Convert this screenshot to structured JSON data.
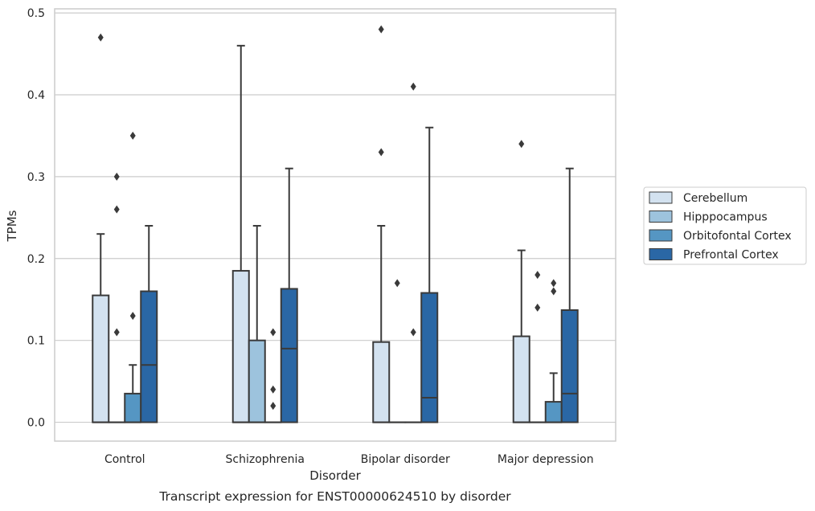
{
  "chart_data": {
    "type": "box",
    "title": "",
    "caption": "Transcript expression for ENST00000624510 by disorder",
    "xlabel": "Disorder",
    "ylabel": "TPMs",
    "ylim": [
      -0.023,
      0.505
    ],
    "yticks": [
      "0.0",
      "0.1",
      "0.2",
      "0.3",
      "0.4",
      "0.5"
    ],
    "categories": [
      "Control",
      "Schizophrenia",
      "Bipolar disorder",
      "Major depression"
    ],
    "grid": true,
    "legend_position": "right",
    "series": [
      {
        "name": "Cerebellum",
        "color": "#d3e2f0",
        "boxes": [
          {
            "q1": 0,
            "median": 0,
            "q3": 0.155,
            "whisker_low": 0,
            "whisker_high": 0.23,
            "outliers": [
              0.47
            ]
          },
          {
            "q1": 0,
            "median": 0,
            "q3": 0.185,
            "whisker_low": 0,
            "whisker_high": 0.46,
            "outliers": []
          },
          {
            "q1": 0,
            "median": 0,
            "q3": 0.098,
            "whisker_low": 0,
            "whisker_high": 0.24,
            "outliers": [
              0.33,
              0.48
            ]
          },
          {
            "q1": 0,
            "median": 0,
            "q3": 0.105,
            "whisker_low": 0,
            "whisker_high": 0.21,
            "outliers": [
              0.34
            ]
          }
        ]
      },
      {
        "name": "Hipppocampus",
        "color": "#9dc3dd",
        "boxes": [
          {
            "q1": 0,
            "median": 0,
            "q3": 0,
            "whisker_low": 0,
            "whisker_high": 0,
            "outliers": [
              0.11,
              0.26,
              0.3
            ]
          },
          {
            "q1": 0,
            "median": 0,
            "q3": 0.1,
            "whisker_low": 0,
            "whisker_high": 0.24,
            "outliers": []
          },
          {
            "q1": 0,
            "median": 0,
            "q3": 0,
            "whisker_low": 0,
            "whisker_high": 0,
            "outliers": [
              0.17
            ]
          },
          {
            "q1": 0,
            "median": 0,
            "q3": 0,
            "whisker_low": 0,
            "whisker_high": 0,
            "outliers": [
              0.14,
              0.18
            ]
          }
        ]
      },
      {
        "name": "Orbitofontal Cortex",
        "color": "#5596c3",
        "boxes": [
          {
            "q1": 0,
            "median": 0,
            "q3": 0.035,
            "whisker_low": 0,
            "whisker_high": 0.07,
            "outliers": [
              0.13,
              0.35
            ]
          },
          {
            "q1": 0,
            "median": 0,
            "q3": 0,
            "whisker_low": 0,
            "whisker_high": 0,
            "outliers": [
              0.02,
              0.04,
              0.11
            ]
          },
          {
            "q1": 0,
            "median": 0,
            "q3": 0,
            "whisker_low": 0,
            "whisker_high": 0,
            "outliers": [
              0.11,
              0.41
            ]
          },
          {
            "q1": 0,
            "median": 0,
            "q3": 0.025,
            "whisker_low": 0,
            "whisker_high": 0.06,
            "outliers": [
              0.16,
              0.17
            ]
          }
        ]
      },
      {
        "name": "Prefrontal Cortex",
        "color": "#2a67a5",
        "boxes": [
          {
            "q1": 0,
            "median": 0.07,
            "q3": 0.16,
            "whisker_low": 0,
            "whisker_high": 0.24,
            "outliers": []
          },
          {
            "q1": 0,
            "median": 0.09,
            "q3": 0.163,
            "whisker_low": 0,
            "whisker_high": 0.31,
            "outliers": []
          },
          {
            "q1": 0,
            "median": 0.03,
            "q3": 0.158,
            "whisker_low": 0,
            "whisker_high": 0.36,
            "outliers": []
          },
          {
            "q1": 0,
            "median": 0.035,
            "q3": 0.137,
            "whisker_low": 0,
            "whisker_high": 0.31,
            "outliers": []
          }
        ]
      }
    ]
  }
}
